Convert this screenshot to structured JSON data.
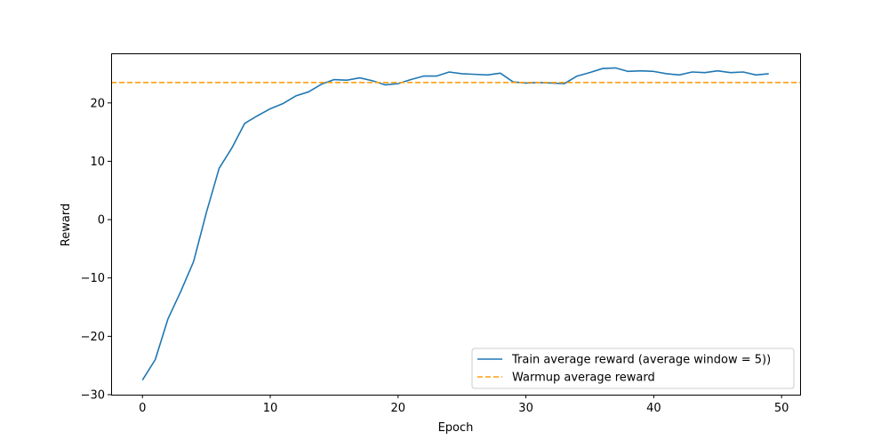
{
  "chart_data": {
    "type": "line",
    "title": "",
    "xlabel": "Epoch",
    "ylabel": "Reward",
    "xlim": [
      -2.45,
      51.45
    ],
    "ylim": [
      -30,
      28.5
    ],
    "xticks": [
      0,
      10,
      20,
      30,
      40,
      50
    ],
    "yticks": [
      -30,
      -20,
      -10,
      0,
      10,
      20
    ],
    "ytick_labels": [
      "−30",
      "−20",
      "−10",
      "0",
      "10",
      "20"
    ],
    "grid": false,
    "legend": {
      "placement": "lower-right"
    },
    "series": [
      {
        "name": "Train average reward (average window = 5))",
        "color": "#1f77b4",
        "style": "solid",
        "x": [
          0,
          1,
          2,
          3,
          4,
          5,
          6,
          7,
          8,
          9,
          10,
          11,
          12,
          13,
          14,
          15,
          16,
          17,
          18,
          19,
          20,
          21,
          22,
          23,
          24,
          25,
          26,
          27,
          28,
          29,
          30,
          31,
          32,
          33,
          34,
          35,
          36,
          37,
          38,
          39,
          40,
          41,
          42,
          43,
          44,
          45,
          46,
          47,
          48,
          49
        ],
        "y": [
          -27.5,
          -24.0,
          -17.0,
          -12.3,
          -7.2,
          1.2,
          8.8,
          12.3,
          16.5,
          17.8,
          19.0,
          19.9,
          21.2,
          21.9,
          23.2,
          24.0,
          23.9,
          24.3,
          23.8,
          23.1,
          23.3,
          24.0,
          24.6,
          24.6,
          25.3,
          25.0,
          24.9,
          24.8,
          25.1,
          23.6,
          23.4,
          23.5,
          23.4,
          23.3,
          24.6,
          25.2,
          25.9,
          26.0,
          25.4,
          25.5,
          25.4,
          25.0,
          24.8,
          25.3,
          25.2,
          25.5,
          25.2,
          25.3,
          24.8,
          25.0
        ]
      },
      {
        "name": "Warmup average reward",
        "color": "#ff9f0e",
        "style": "dashed",
        "constant_y": 23.5
      }
    ]
  }
}
